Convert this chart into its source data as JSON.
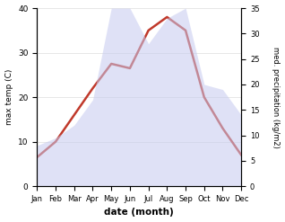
{
  "months": [
    "Jan",
    "Feb",
    "Mar",
    "Apr",
    "May",
    "Jun",
    "Jul",
    "Aug",
    "Sep",
    "Oct",
    "Nov",
    "Dec"
  ],
  "temperature": [
    6.5,
    10.0,
    16.0,
    22.0,
    27.5,
    26.5,
    35.0,
    38.0,
    35.0,
    20.0,
    13.0,
    7.0
  ],
  "precipitation": [
    8.0,
    9.5,
    12.0,
    17.0,
    35.0,
    35.0,
    28.0,
    33.0,
    35.0,
    20.0,
    19.0,
    14.0
  ],
  "temp_color": "#c0392b",
  "precip_fill_color": "#c5caf0",
  "temp_ylim": [
    0,
    40
  ],
  "precip_ylim": [
    0,
    35
  ],
  "temp_yticks": [
    0,
    10,
    20,
    30,
    40
  ],
  "precip_yticks": [
    0,
    5,
    10,
    15,
    20,
    25,
    30,
    35
  ],
  "xlabel": "date (month)",
  "ylabel_left": "max temp (C)",
  "ylabel_right": "med. precipitation (kg/m2)",
  "background_color": "#ffffff",
  "temp_linewidth": 1.8,
  "precip_alpha": 0.55
}
